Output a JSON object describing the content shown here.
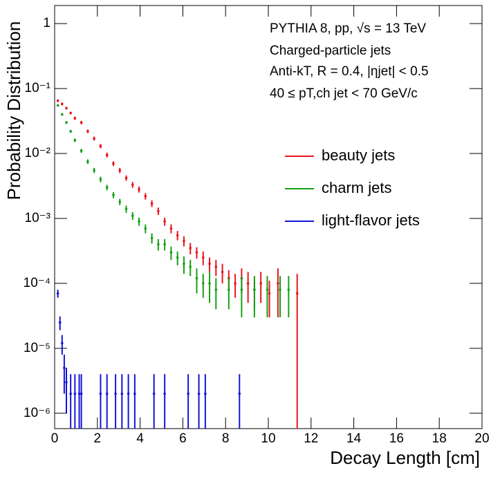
{
  "chart_data": {
    "type": "scatter",
    "annotations": [
      "PYTHIA 8, pp, √s = 13 TeV",
      "Charged-particle jets",
      "Anti-kT, R = 0.4, |ηjet| < 0.5",
      "40 ≤ pT,ch jet < 70 GeV/c"
    ],
    "x_label": "Decay Length [cm]",
    "y_label": "Probability Distribution",
    "xlim": [
      0,
      20
    ],
    "xticks": [
      0,
      2,
      4,
      6,
      8,
      10,
      12,
      14,
      16,
      18,
      20
    ],
    "ylim": [
      5.8e-07,
      1.9
    ],
    "log_y": true,
    "yticks": [
      {
        "value": 1,
        "label": "1"
      },
      {
        "value": 0.1,
        "label": "10⁻¹"
      },
      {
        "value": 0.01,
        "label": "10⁻²"
      },
      {
        "value": 0.001,
        "label": "10⁻³"
      },
      {
        "value": 0.0001,
        "label": "10⁻⁴"
      },
      {
        "value": 1e-05,
        "label": "10⁻⁵"
      },
      {
        "value": 1e-06,
        "label": "10⁻⁶"
      }
    ],
    "legend": "right",
    "series": [
      {
        "name": "beauty jets",
        "color": "#e8141c",
        "x": [
          0.15,
          0.35,
          0.55,
          0.75,
          0.95,
          1.25,
          1.55,
          1.85,
          2.15,
          2.45,
          2.75,
          3.05,
          3.35,
          3.65,
          3.95,
          4.25,
          4.55,
          4.85,
          5.15,
          5.45,
          5.75,
          6.05,
          6.35,
          6.65,
          6.95,
          7.25,
          7.55,
          7.85,
          8.15,
          8.45,
          8.75,
          9.05,
          9.35,
          9.65,
          10.05,
          10.45,
          11.35
        ],
        "values": [
          0.065,
          0.058,
          0.05,
          0.042,
          0.035,
          0.03,
          0.022,
          0.017,
          0.013,
          0.0095,
          0.007,
          0.0055,
          0.0042,
          0.0033,
          0.0028,
          0.0022,
          0.0017,
          0.0013,
          0.0009,
          0.0007,
          0.00055,
          0.00045,
          0.00035,
          0.0003,
          0.00025,
          0.0002,
          0.00018,
          0.00015,
          0.00012,
          0.0001,
          0.00012,
          0.0001,
          8e-05,
          0.0001,
          7e-05,
          0.0001,
          7e-05
        ],
        "errors": [
          0.003,
          0.003,
          0.0025,
          0.002,
          0.002,
          0.0018,
          0.0014,
          0.0012,
          0.001,
          0.0008,
          0.0006,
          0.0005,
          0.0004,
          0.00035,
          0.0003,
          0.00025,
          0.0002,
          0.00017,
          0.00013,
          0.00011,
          9e-05,
          8e-05,
          7e-05,
          6e-05,
          6e-05,
          5e-05,
          5e-05,
          5e-05,
          4e-05,
          4e-05,
          5e-05,
          5e-05,
          4e-05,
          5e-05,
          4e-05,
          7e-05,
          7e-05
        ]
      },
      {
        "name": "charm jets",
        "color": "#14a014",
        "x": [
          0.15,
          0.35,
          0.55,
          0.75,
          0.95,
          1.25,
          1.55,
          1.85,
          2.15,
          2.45,
          2.75,
          3.05,
          3.35,
          3.65,
          3.95,
          4.25,
          4.55,
          4.85,
          5.15,
          5.45,
          5.75,
          6.05,
          6.35,
          6.65,
          6.95,
          7.25,
          7.55,
          8.15,
          8.75,
          9.35,
          9.95,
          10.55,
          10.95
        ],
        "values": [
          0.055,
          0.04,
          0.03,
          0.022,
          0.016,
          0.011,
          0.0075,
          0.0055,
          0.004,
          0.003,
          0.0023,
          0.0018,
          0.0014,
          0.0011,
          0.0009,
          0.0007,
          0.0005,
          0.0004,
          0.0004,
          0.0003,
          0.00025,
          0.0002,
          0.00018,
          0.00012,
          0.0001,
          0.0001,
          8e-05,
          8e-05,
          8e-05,
          8e-05,
          8e-05,
          8e-05,
          8e-05
        ],
        "errors": [
          0.002,
          0.0017,
          0.0014,
          0.0012,
          0.001,
          0.0008,
          0.0006,
          0.0005,
          0.0004,
          0.0003,
          0.00025,
          0.0002,
          0.00018,
          0.00015,
          0.00013,
          0.00011,
          9e-05,
          8e-05,
          8e-05,
          7e-05,
          6e-05,
          6e-05,
          5e-05,
          5e-05,
          4e-05,
          5e-05,
          4e-05,
          4e-05,
          5e-05,
          5e-05,
          5e-05,
          5e-05,
          5e-05
        ]
      },
      {
        "name": "light-flavor jets",
        "color": "#1414d8",
        "x": [
          0.15,
          0.25,
          0.35,
          0.45,
          0.55,
          0.75,
          0.95,
          1.15,
          1.25,
          2.15,
          2.45,
          2.85,
          3.15,
          3.45,
          3.75,
          4.65,
          5.15,
          6.25,
          6.75,
          7.05,
          8.65
        ],
        "values": [
          7e-05,
          2.5e-05,
          1.2e-05,
          5e-06,
          3e-06,
          2e-06,
          2e-06,
          2e-06,
          2e-06,
          2e-06,
          2e-06,
          2e-06,
          2e-06,
          2e-06,
          2e-06,
          2e-06,
          2e-06,
          2e-06,
          2e-06,
          2e-06,
          2e-06
        ],
        "errors": [
          1e-05,
          6e-06,
          4e-06,
          3e-06,
          2e-06,
          2e-06,
          2e-06,
          2e-06,
          2e-06,
          2e-06,
          2e-06,
          2e-06,
          2e-06,
          2e-06,
          2e-06,
          2e-06,
          2e-06,
          2e-06,
          2e-06,
          2e-06,
          2e-06
        ]
      }
    ]
  }
}
